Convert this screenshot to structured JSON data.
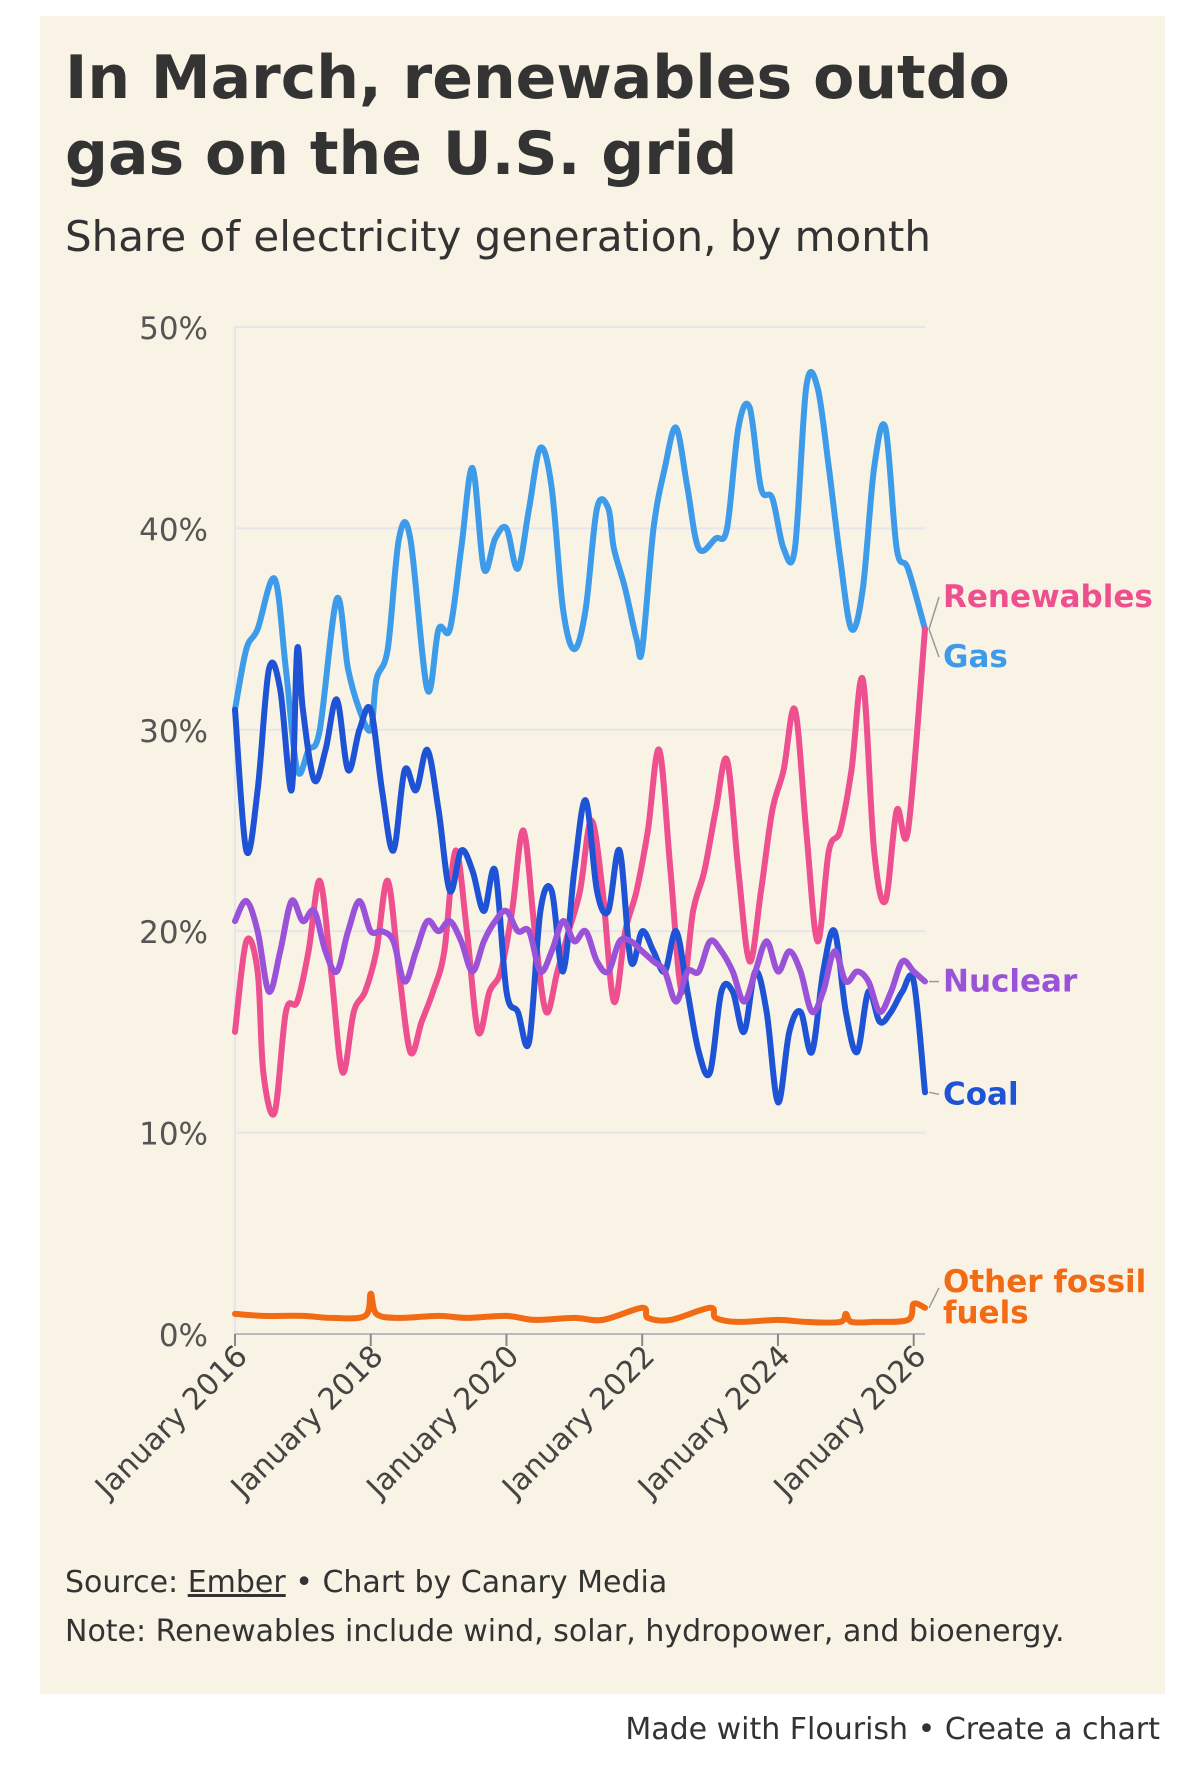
{
  "title": "In March, renewables outdo gas on the U.S. grid",
  "subtitle": "Share of electricity generation, by month",
  "footer": {
    "source_prefix": "Source: ",
    "source_link": "Ember",
    "source_suffix": " • Chart by Canary Media",
    "note": "Note: Renewables include wind, solar, hydropower, and bioenergy."
  },
  "credits": {
    "made_with": "Made with Flourish",
    "separator": " • ",
    "create": "Create a chart"
  },
  "colors": {
    "background": "#f8f3e4",
    "gas": "#3d9be9",
    "renewables": "#ee4f8e",
    "coal": "#1f53d6",
    "nuclear": "#9a52d8",
    "other_fossil": "#f26a13"
  },
  "chart_data": {
    "type": "line",
    "x_start": "2016-01",
    "x_end": "2026-03",
    "ylim": [
      0,
      50
    ],
    "y_ticks": [
      0,
      10,
      20,
      30,
      40,
      50
    ],
    "y_tick_labels": [
      "0%",
      "10%",
      "20%",
      "30%",
      "40%",
      "50%"
    ],
    "x_tick_labels": [
      "January 2016",
      "January 2018",
      "January 2020",
      "January 2022",
      "January 2024",
      "January 2026"
    ],
    "x_tick_values": [
      "2016-01",
      "2018-01",
      "2020-01",
      "2022-01",
      "2024-01",
      "2026-01"
    ],
    "grid": true,
    "legend": "direct labels at line ends",
    "series": [
      {
        "name": "Gas",
        "color": "#3d9be9",
        "points": [
          [
            "2016-01",
            31
          ],
          [
            "2016-03",
            34
          ],
          [
            "2016-05",
            35
          ],
          [
            "2016-08",
            37.5
          ],
          [
            "2016-10",
            33
          ],
          [
            "2016-12",
            28
          ],
          [
            "2017-02",
            29
          ],
          [
            "2017-04",
            30
          ],
          [
            "2017-07",
            36.5
          ],
          [
            "2017-09",
            33
          ],
          [
            "2017-11",
            31
          ],
          [
            "2018-01",
            30
          ],
          [
            "2018-02",
            32.5
          ],
          [
            "2018-04",
            34
          ],
          [
            "2018-06",
            39.5
          ],
          [
            "2018-08",
            39.5
          ],
          [
            "2018-11",
            32
          ],
          [
            "2019-01",
            35
          ],
          [
            "2019-03",
            35
          ],
          [
            "2019-05",
            39
          ],
          [
            "2019-07",
            43
          ],
          [
            "2019-09",
            38
          ],
          [
            "2019-11",
            39.5
          ],
          [
            "2020-01",
            40
          ],
          [
            "2020-03",
            38
          ],
          [
            "2020-05",
            41
          ],
          [
            "2020-07",
            44
          ],
          [
            "2020-09",
            42
          ],
          [
            "2020-11",
            36
          ],
          [
            "2021-01",
            34
          ],
          [
            "2021-03",
            36
          ],
          [
            "2021-05",
            41
          ],
          [
            "2021-07",
            41
          ],
          [
            "2021-08",
            39
          ],
          [
            "2021-10",
            37
          ],
          [
            "2021-12",
            34.5
          ],
          [
            "2022-01",
            34
          ],
          [
            "2022-03",
            40
          ],
          [
            "2022-05",
            43
          ],
          [
            "2022-07",
            45
          ],
          [
            "2022-09",
            42
          ],
          [
            "2022-11",
            39
          ],
          [
            "2023-02",
            39.5
          ],
          [
            "2023-04",
            40
          ],
          [
            "2023-06",
            45
          ],
          [
            "2023-08",
            46
          ],
          [
            "2023-10",
            42
          ],
          [
            "2023-12",
            41.5
          ],
          [
            "2024-02",
            39
          ],
          [
            "2024-04",
            39
          ],
          [
            "2024-06",
            47
          ],
          [
            "2024-08",
            47
          ],
          [
            "2024-10",
            43
          ],
          [
            "2024-12",
            38.5
          ],
          [
            "2025-02",
            35
          ],
          [
            "2025-04",
            37
          ],
          [
            "2025-06",
            43
          ],
          [
            "2025-08",
            45
          ],
          [
            "2025-10",
            39
          ],
          [
            "2025-12",
            38
          ],
          [
            "2026-03",
            35
          ]
        ]
      },
      {
        "name": "Renewables",
        "color": "#ee4f8e",
        "points": [
          [
            "2016-01",
            15
          ],
          [
            "2016-03",
            19.5
          ],
          [
            "2016-05",
            18
          ],
          [
            "2016-06",
            13
          ],
          [
            "2016-08",
            11
          ],
          [
            "2016-10",
            16
          ],
          [
            "2016-12",
            16.5
          ],
          [
            "2017-02",
            19
          ],
          [
            "2017-04",
            22.5
          ],
          [
            "2017-06",
            18
          ],
          [
            "2017-08",
            13
          ],
          [
            "2017-10",
            16
          ],
          [
            "2017-12",
            17
          ],
          [
            "2018-02",
            19
          ],
          [
            "2018-04",
            22.5
          ],
          [
            "2018-06",
            18
          ],
          [
            "2018-08",
            14
          ],
          [
            "2018-10",
            15.5
          ],
          [
            "2018-12",
            17
          ],
          [
            "2019-02",
            19
          ],
          [
            "2019-04",
            24
          ],
          [
            "2019-06",
            20
          ],
          [
            "2019-08",
            15
          ],
          [
            "2019-10",
            17
          ],
          [
            "2019-12",
            18
          ],
          [
            "2020-02",
            21
          ],
          [
            "2020-04",
            25
          ],
          [
            "2020-06",
            20
          ],
          [
            "2020-08",
            16
          ],
          [
            "2020-10",
            18
          ],
          [
            "2020-12",
            20
          ],
          [
            "2021-02",
            22
          ],
          [
            "2021-04",
            25.5
          ],
          [
            "2021-06",
            22
          ],
          [
            "2021-08",
            16.5
          ],
          [
            "2021-10",
            20
          ],
          [
            "2021-12",
            22
          ],
          [
            "2022-02",
            25
          ],
          [
            "2022-04",
            29
          ],
          [
            "2022-06",
            23
          ],
          [
            "2022-08",
            17
          ],
          [
            "2022-10",
            21
          ],
          [
            "2022-12",
            23
          ],
          [
            "2023-02",
            26
          ],
          [
            "2023-04",
            28.5
          ],
          [
            "2023-06",
            23
          ],
          [
            "2023-08",
            18.5
          ],
          [
            "2023-10",
            22
          ],
          [
            "2023-12",
            26
          ],
          [
            "2024-02",
            28
          ],
          [
            "2024-04",
            31
          ],
          [
            "2024-06",
            25
          ],
          [
            "2024-08",
            19.5
          ],
          [
            "2024-10",
            24
          ],
          [
            "2024-12",
            25
          ],
          [
            "2025-02",
            28
          ],
          [
            "2025-04",
            32.5
          ],
          [
            "2025-06",
            24
          ],
          [
            "2025-08",
            21.5
          ],
          [
            "2025-10",
            26
          ],
          [
            "2025-12",
            25
          ],
          [
            "2026-03",
            35
          ]
        ]
      },
      {
        "name": "Coal",
        "color": "#1f53d6",
        "points": [
          [
            "2016-01",
            31
          ],
          [
            "2016-03",
            24
          ],
          [
            "2016-05",
            27
          ],
          [
            "2016-07",
            33
          ],
          [
            "2016-09",
            32
          ],
          [
            "2016-11",
            27
          ],
          [
            "2016-12",
            34
          ],
          [
            "2017-01",
            31
          ],
          [
            "2017-03",
            27.5
          ],
          [
            "2017-05",
            29
          ],
          [
            "2017-07",
            31.5
          ],
          [
            "2017-09",
            28
          ],
          [
            "2017-11",
            30
          ],
          [
            "2018-01",
            31
          ],
          [
            "2018-03",
            27
          ],
          [
            "2018-05",
            24
          ],
          [
            "2018-07",
            28
          ],
          [
            "2018-09",
            27
          ],
          [
            "2018-11",
            29
          ],
          [
            "2019-01",
            26
          ],
          [
            "2019-03",
            22
          ],
          [
            "2019-05",
            24
          ],
          [
            "2019-07",
            23
          ],
          [
            "2019-09",
            21
          ],
          [
            "2019-11",
            23
          ],
          [
            "2020-01",
            17
          ],
          [
            "2020-03",
            16
          ],
          [
            "2020-05",
            14.5
          ],
          [
            "2020-07",
            21
          ],
          [
            "2020-09",
            22
          ],
          [
            "2020-11",
            18
          ],
          [
            "2021-01",
            23
          ],
          [
            "2021-03",
            26.5
          ],
          [
            "2021-05",
            22
          ],
          [
            "2021-07",
            21
          ],
          [
            "2021-09",
            24
          ],
          [
            "2021-11",
            18.5
          ],
          [
            "2022-01",
            20
          ],
          [
            "2022-03",
            19
          ],
          [
            "2022-05",
            18
          ],
          [
            "2022-07",
            20
          ],
          [
            "2022-09",
            17
          ],
          [
            "2022-11",
            14
          ],
          [
            "2023-01",
            13
          ],
          [
            "2023-03",
            17
          ],
          [
            "2023-05",
            17
          ],
          [
            "2023-07",
            15
          ],
          [
            "2023-09",
            18
          ],
          [
            "2023-11",
            16
          ],
          [
            "2024-01",
            11.5
          ],
          [
            "2024-03",
            15
          ],
          [
            "2024-05",
            16
          ],
          [
            "2024-07",
            14
          ],
          [
            "2024-09",
            18
          ],
          [
            "2024-11",
            20
          ],
          [
            "2025-01",
            16
          ],
          [
            "2025-03",
            14
          ],
          [
            "2025-05",
            17
          ],
          [
            "2025-07",
            15.5
          ],
          [
            "2025-09",
            16
          ],
          [
            "2025-11",
            17
          ],
          [
            "2026-01",
            17.5
          ],
          [
            "2026-03",
            12
          ]
        ]
      },
      {
        "name": "Nuclear",
        "color": "#9a52d8",
        "points": [
          [
            "2016-01",
            20.5
          ],
          [
            "2016-03",
            21.5
          ],
          [
            "2016-05",
            20
          ],
          [
            "2016-07",
            17
          ],
          [
            "2016-09",
            19
          ],
          [
            "2016-11",
            21.5
          ],
          [
            "2017-01",
            20.5
          ],
          [
            "2017-03",
            21
          ],
          [
            "2017-05",
            19
          ],
          [
            "2017-07",
            18
          ],
          [
            "2017-09",
            20
          ],
          [
            "2017-11",
            21.5
          ],
          [
            "2018-01",
            20
          ],
          [
            "2018-03",
            20
          ],
          [
            "2018-05",
            19.5
          ],
          [
            "2018-07",
            17.5
          ],
          [
            "2018-09",
            19
          ],
          [
            "2018-11",
            20.5
          ],
          [
            "2019-01",
            20
          ],
          [
            "2019-03",
            20.5
          ],
          [
            "2019-05",
            19.5
          ],
          [
            "2019-07",
            18
          ],
          [
            "2019-09",
            19.5
          ],
          [
            "2019-11",
            20.5
          ],
          [
            "2020-01",
            21
          ],
          [
            "2020-03",
            20
          ],
          [
            "2020-05",
            20
          ],
          [
            "2020-07",
            18
          ],
          [
            "2020-09",
            19
          ],
          [
            "2020-11",
            20.5
          ],
          [
            "2021-01",
            19.5
          ],
          [
            "2021-03",
            20
          ],
          [
            "2021-05",
            18.5
          ],
          [
            "2021-07",
            18
          ],
          [
            "2021-09",
            19.5
          ],
          [
            "2021-11",
            19.5
          ],
          [
            "2022-01",
            19
          ],
          [
            "2022-03",
            18.5
          ],
          [
            "2022-05",
            18
          ],
          [
            "2022-07",
            16.5
          ],
          [
            "2022-09",
            18
          ],
          [
            "2022-11",
            18
          ],
          [
            "2023-01",
            19.5
          ],
          [
            "2023-03",
            19
          ],
          [
            "2023-05",
            18
          ],
          [
            "2023-07",
            16.5
          ],
          [
            "2023-09",
            18
          ],
          [
            "2023-11",
            19.5
          ],
          [
            "2024-01",
            18
          ],
          [
            "2024-03",
            19
          ],
          [
            "2024-05",
            18
          ],
          [
            "2024-07",
            16
          ],
          [
            "2024-09",
            17
          ],
          [
            "2024-11",
            19
          ],
          [
            "2025-01",
            17.5
          ],
          [
            "2025-03",
            18
          ],
          [
            "2025-05",
            17.5
          ],
          [
            "2025-07",
            16
          ],
          [
            "2025-09",
            17
          ],
          [
            "2025-11",
            18.5
          ],
          [
            "2026-01",
            18
          ],
          [
            "2026-03",
            17.5
          ]
        ]
      },
      {
        "name": "Other fossil fuels",
        "color": "#f26a13",
        "points": [
          [
            "2016-01",
            1
          ],
          [
            "2016-06",
            0.9
          ],
          [
            "2017-01",
            0.9
          ],
          [
            "2017-06",
            0.8
          ],
          [
            "2017-12",
            0.9
          ],
          [
            "2018-01",
            2
          ],
          [
            "2018-02",
            1
          ],
          [
            "2018-06",
            0.8
          ],
          [
            "2019-01",
            0.9
          ],
          [
            "2019-06",
            0.8
          ],
          [
            "2020-01",
            0.9
          ],
          [
            "2020-06",
            0.7
          ],
          [
            "2021-01",
            0.8
          ],
          [
            "2021-06",
            0.7
          ],
          [
            "2022-01",
            1.3
          ],
          [
            "2022-02",
            0.8
          ],
          [
            "2022-06",
            0.7
          ],
          [
            "2023-01",
            1.3
          ],
          [
            "2023-02",
            0.8
          ],
          [
            "2023-06",
            0.6
          ],
          [
            "2024-01",
            0.7
          ],
          [
            "2024-06",
            0.6
          ],
          [
            "2024-12",
            0.6
          ],
          [
            "2025-01",
            1
          ],
          [
            "2025-02",
            0.6
          ],
          [
            "2025-06",
            0.6
          ],
          [
            "2025-12",
            0.7
          ],
          [
            "2026-01",
            1.5
          ],
          [
            "2026-03",
            1.3
          ]
        ]
      }
    ]
  }
}
